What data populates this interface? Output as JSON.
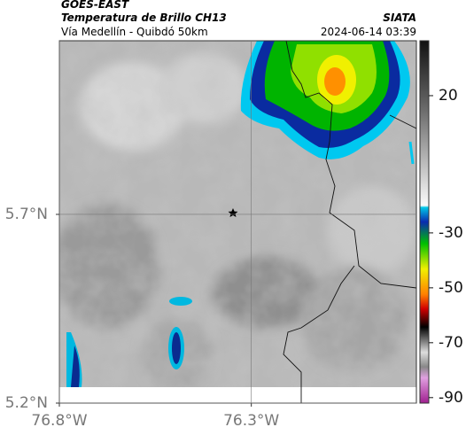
{
  "header": {
    "source": "GOES-EAST",
    "title": "Temperatura de Brillo CH13",
    "agency": "SIATA",
    "subtitle": "Vía Medellín - Quibdó 50km",
    "datetime": "2024-06-14 03:39"
  },
  "map": {
    "xlim": [
      -76.8,
      -75.87
    ],
    "ylim": [
      5.2,
      6.16
    ],
    "xticks": [
      {
        "value": -76.8,
        "label": "76.8°W"
      },
      {
        "value": -76.3,
        "label": "76.3°W"
      }
    ],
    "yticks": [
      {
        "value": 5.2,
        "label": "5.2°N"
      },
      {
        "value": 5.7,
        "label": "5.7°N"
      }
    ],
    "grid": true
  },
  "colorbar": {
    "lim": [
      -92,
      40
    ],
    "ticks": [
      20,
      -30,
      -50,
      -70,
      -90
    ]
  }
}
